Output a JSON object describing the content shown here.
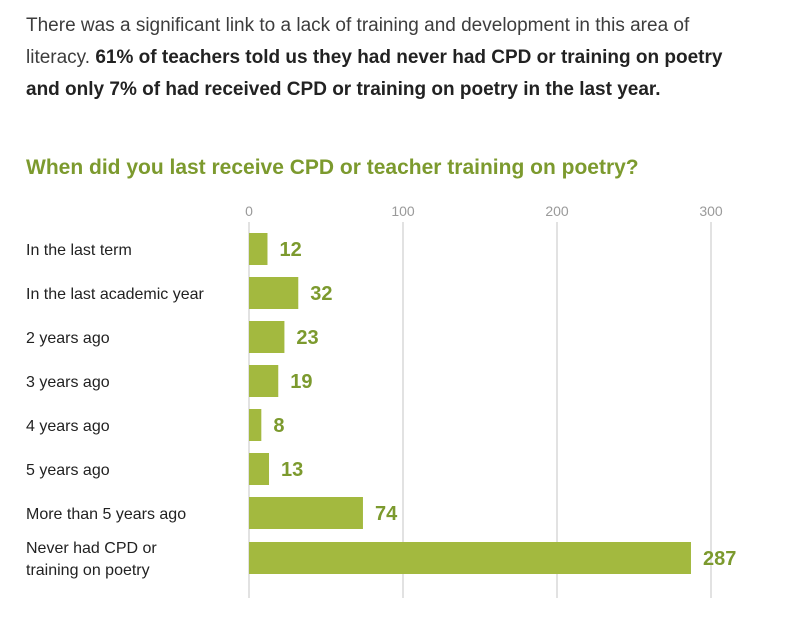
{
  "intro": {
    "lead": "There was a significant link to a lack of training and development in this area of literacy. ",
    "bold": "61% of teachers told us they had never had CPD or training on poetry and only 7% of had received CPD or training on poetry in the last year."
  },
  "colors": {
    "accent": "#a3b93f",
    "title": "#7c9a2e",
    "value": "#7c9a2e",
    "grid": "#d9d9d9"
  },
  "chart_data": {
    "type": "bar",
    "orientation": "horizontal",
    "title": "When did you last receive CPD or teacher training on poetry?",
    "categories": [
      [
        "In the last term"
      ],
      [
        "In the last academic year"
      ],
      [
        "2 years ago"
      ],
      [
        "3 years ago"
      ],
      [
        "4 years ago"
      ],
      [
        "5 years ago"
      ],
      [
        "More than 5 years ago"
      ],
      [
        "Never had CPD or",
        "training on poetry"
      ]
    ],
    "values": [
      12,
      32,
      23,
      19,
      8,
      13,
      74,
      287
    ],
    "xticks": [
      0,
      100,
      200,
      300
    ],
    "xlim": [
      0,
      300
    ],
    "grid": true,
    "xaxis_position": "top"
  }
}
